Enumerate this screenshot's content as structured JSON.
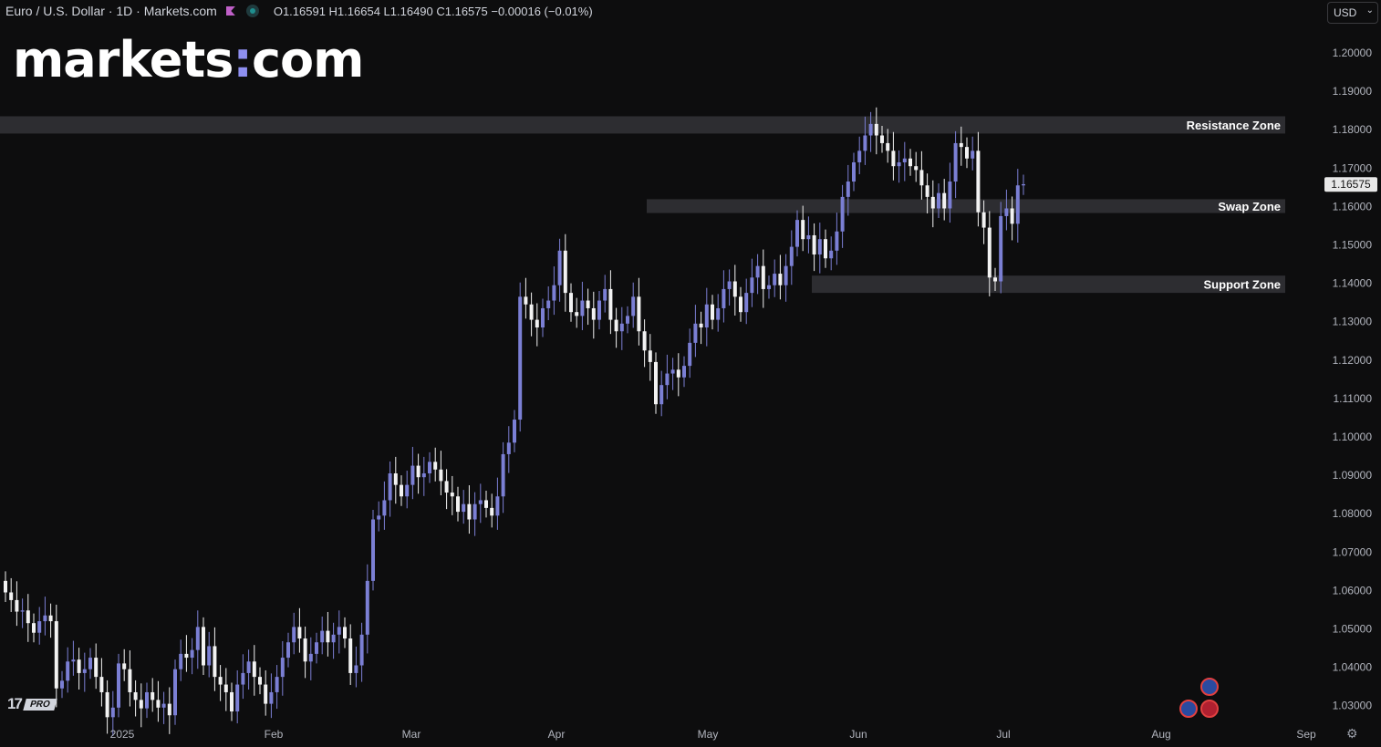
{
  "header": {
    "symbol": "Euro / U.S. Dollar · 1D · Markets.com",
    "ohlc": "O1.16591 H1.16654 L1.16490 C1.16575 −0.00016 (−0.01%)"
  },
  "logo": {
    "left": "markets",
    "colon": ":",
    "right": "com"
  },
  "currency": {
    "selected": "USD",
    "chevron_icon": "chevron-down-icon"
  },
  "branding": {
    "tv_logo": "17",
    "pro_badge": "PRO"
  },
  "colors": {
    "background": "#0d0d0e",
    "up_candle": "#7b7fd4",
    "down_candle": "#f2f2f2",
    "zone": "#2d2d31",
    "axis_text": "#b2b5be"
  },
  "chart_data": {
    "type": "candlestick",
    "title": "Euro / U.S. Dollar · 1D · Markets.com",
    "ylim": [
      1.025,
      1.205
    ],
    "y_ticks": [
      "1.20000",
      "1.19000",
      "1.18000",
      "1.17000",
      "1.16000",
      "1.15000",
      "1.14000",
      "1.13000",
      "1.12000",
      "1.11000",
      "1.10000",
      "1.09000",
      "1.08000",
      "1.07000",
      "1.06000",
      "1.05000",
      "1.04000",
      "1.03000"
    ],
    "x_ticks": [
      "2025",
      "Feb",
      "Mar",
      "Apr",
      "May",
      "Jun",
      "Jul",
      "Aug",
      "Sep"
    ],
    "last_price": "1.16575",
    "zones": [
      {
        "label": "Resistance Zone",
        "low": 1.179,
        "high": 1.1835
      },
      {
        "label": "Swap Zone",
        "low": 1.1583,
        "high": 1.1619
      },
      {
        "label": "Support Zone",
        "low": 1.1375,
        "high": 1.142
      }
    ],
    "closes": [
      1.0595,
      1.0575,
      1.0545,
      1.0548,
      1.0515,
      1.049,
      1.052,
      1.0535,
      1.052,
      1.0345,
      1.0365,
      1.0415,
      1.042,
      1.0385,
      1.0395,
      1.0425,
      1.0375,
      1.0335,
      1.027,
      1.0295,
      1.041,
      1.0395,
      1.0335,
      1.0315,
      1.0293,
      1.0335,
      1.0315,
      1.0295,
      1.0305,
      1.0275,
      1.0395,
      1.0435,
      1.0425,
      1.0445,
      1.0505,
      1.0405,
      1.0455,
      1.0375,
      1.0355,
      1.0335,
      1.0285,
      1.0355,
      1.0385,
      1.0415,
      1.0375,
      1.0355,
      1.0305,
      1.0335,
      1.0375,
      1.0425,
      1.0465,
      1.0505,
      1.0475,
      1.0415,
      1.0435,
      1.0465,
      1.0495,
      1.0465,
      1.0485,
      1.0505,
      1.0475,
      1.0385,
      1.0405,
      1.0485,
      1.0625,
      1.0785,
      1.0795,
      1.0835,
      1.0905,
      1.0875,
      1.0845,
      1.0875,
      1.0925,
      1.0895,
      1.0905,
      1.0935,
      1.0915,
      1.0885,
      1.0855,
      1.0845,
      1.0805,
      1.0825,
      1.0785,
      1.0825,
      1.0835,
      1.0815,
      1.0795,
      1.0845,
      1.0955,
      1.0985,
      1.1045,
      1.1365,
      1.1345,
      1.1305,
      1.1285,
      1.1335,
      1.1355,
      1.1395,
      1.1485,
      1.1375,
      1.1325,
      1.1315,
      1.1355,
      1.1335,
      1.1305,
      1.1355,
      1.1385,
      1.1305,
      1.1275,
      1.1295,
      1.1315,
      1.1365,
      1.1275,
      1.1225,
      1.1195,
      1.1085,
      1.1135,
      1.1165,
      1.1175,
      1.1155,
      1.1185,
      1.1245,
      1.1295,
      1.1285,
      1.1345,
      1.1305,
      1.1335,
      1.1385,
      1.1405,
      1.1365,
      1.1325,
      1.1375,
      1.1415,
      1.1445,
      1.1385,
      1.1395,
      1.1425,
      1.1395,
      1.1445,
      1.1495,
      1.1565,
      1.1515,
      1.1525,
      1.1475,
      1.1515,
      1.1465,
      1.1485,
      1.1535,
      1.1625,
      1.1665,
      1.1715,
      1.1745,
      1.1785,
      1.1815,
      1.1785,
      1.1765,
      1.1745,
      1.1705,
      1.1715,
      1.1725,
      1.1705,
      1.1695,
      1.1655,
      1.1625,
      1.1595,
      1.1635,
      1.1595,
      1.1665,
      1.1765,
      1.1755,
      1.1725,
      1.1745,
      1.1585,
      1.1545,
      1.1415,
      1.1405,
      1.1575,
      1.1595,
      1.1555,
      1.1655,
      1.1658
    ]
  }
}
